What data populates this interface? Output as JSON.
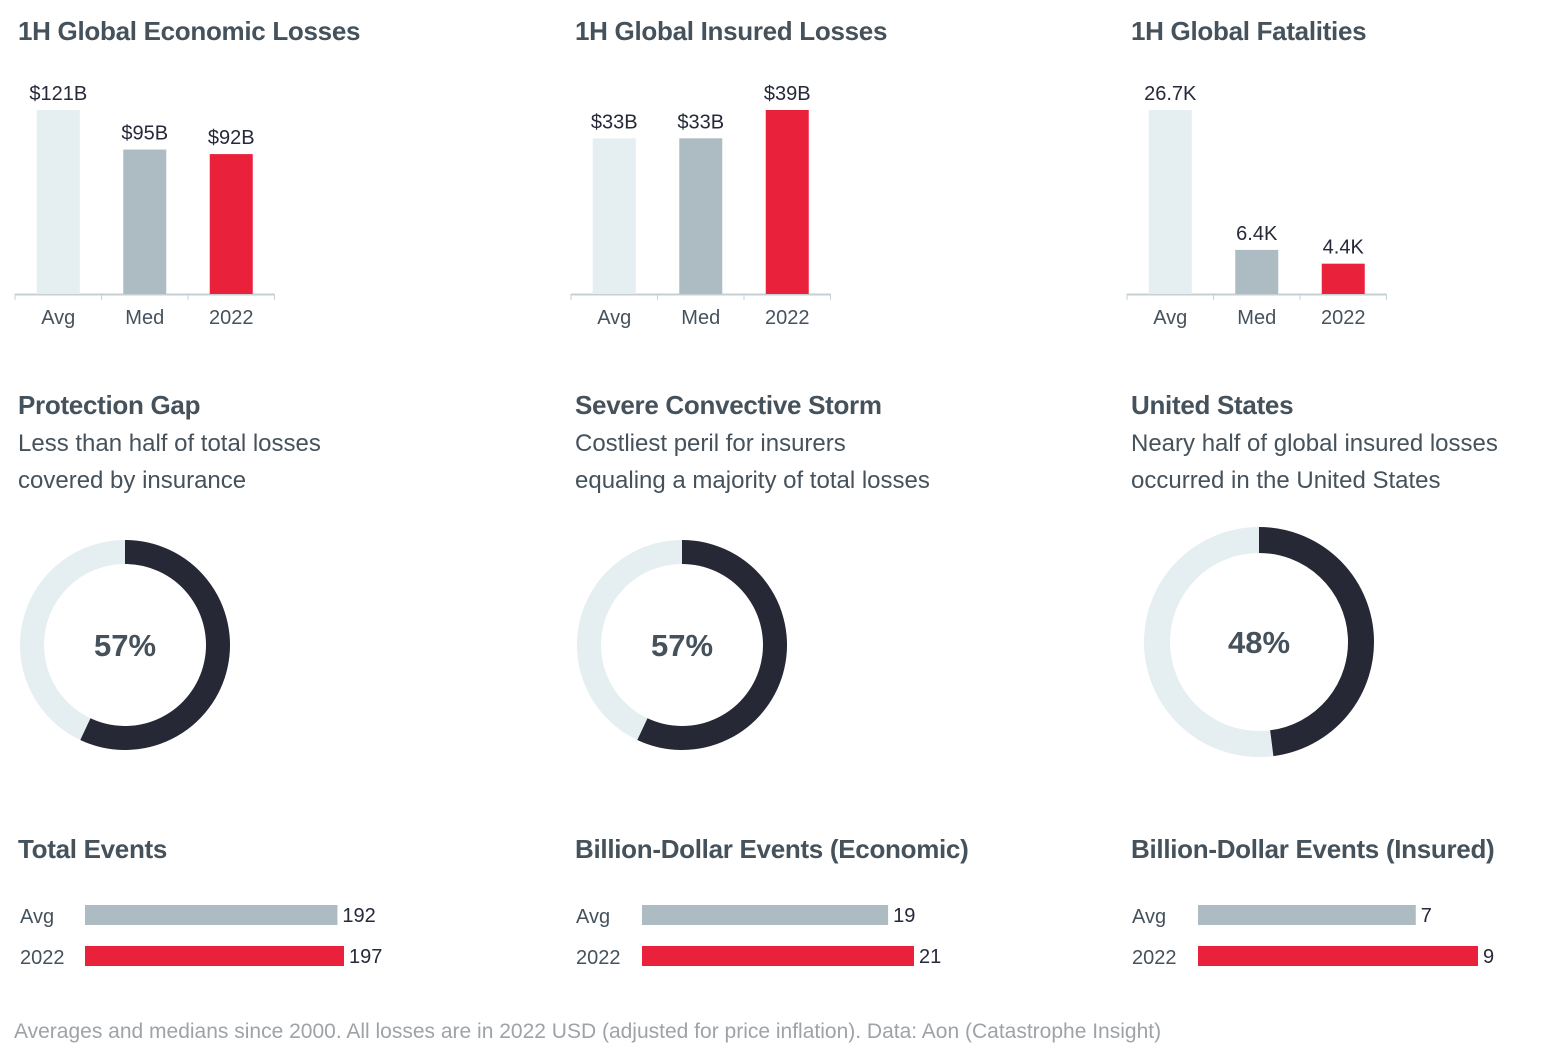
{
  "colors": {
    "avg": "#e5eef1",
    "med": "#adbcc2",
    "year": "#ea213a",
    "donut_fill": "#262835",
    "donut_track": "#e5eef1",
    "axis": "#c5d0d4",
    "title": "#45525c",
    "value_text": "#26293a",
    "footnote": "#9ea3a8"
  },
  "chart_data": [
    {
      "id": "economic",
      "type": "bar",
      "title": "1H Global Economic Losses",
      "unit": "USD billions",
      "categories": [
        "Avg",
        "Med",
        "2022"
      ],
      "values": [
        121,
        95,
        92
      ],
      "labels": [
        "$121B",
        "$95B",
        "$92B"
      ],
      "ylim": [
        0,
        121
      ],
      "grid": false
    },
    {
      "id": "insured",
      "type": "bar",
      "title": "1H Global Insured Losses",
      "unit": "USD billions",
      "categories": [
        "Avg",
        "Med",
        "2022"
      ],
      "values": [
        33,
        33,
        39
      ],
      "labels": [
        "$33B",
        "$33B",
        "$39B"
      ],
      "ylim": [
        0,
        39
      ],
      "grid": false
    },
    {
      "id": "fatalities",
      "type": "bar",
      "title": "1H Global Fatalities",
      "unit": "thousands",
      "categories": [
        "Avg",
        "Med",
        "2022"
      ],
      "values": [
        26.7,
        6.4,
        4.4
      ],
      "labels": [
        "26.7K",
        "6.4K",
        "4.4K"
      ],
      "ylim": [
        0,
        26.7
      ],
      "grid": false
    },
    {
      "id": "protection-gap",
      "type": "pie",
      "title": "Protection Gap",
      "subtitle": [
        "Less than half of total losses",
        "covered by insurance"
      ],
      "value": 57,
      "label": "57%"
    },
    {
      "id": "scs",
      "type": "pie",
      "title": "Severe Convective Storm",
      "subtitle": [
        "Costliest peril for insurers",
        "equaling a majority of total losses"
      ],
      "value": 57,
      "label": "57%"
    },
    {
      "id": "us",
      "type": "pie",
      "title": "United States",
      "subtitle": [
        "Neary half of global insured losses",
        "occurred in the United States"
      ],
      "value": 48,
      "label": "48%"
    },
    {
      "id": "total-events",
      "type": "bar",
      "orientation": "horizontal",
      "title": "Total Events",
      "categories": [
        "Avg",
        "2022"
      ],
      "values": [
        192,
        197
      ],
      "labels": [
        "192",
        "197"
      ]
    },
    {
      "id": "bde-economic",
      "type": "bar",
      "orientation": "horizontal",
      "title": "Billion-Dollar Events  (Economic)",
      "categories": [
        "Avg",
        "2022"
      ],
      "values": [
        19,
        21
      ],
      "labels": [
        "19",
        "21"
      ]
    },
    {
      "id": "bde-insured",
      "type": "bar",
      "orientation": "horizontal",
      "title": "Billion-Dollar Events  (Insured)",
      "categories": [
        "Avg",
        "2022"
      ],
      "values": [
        7,
        9
      ],
      "labels": [
        "7",
        "9"
      ]
    }
  ],
  "footnote": "Averages and medians since 2000. All losses are in 2022 USD (adjusted for price inflation).  Data: Aon (Catastrophe Insight)"
}
